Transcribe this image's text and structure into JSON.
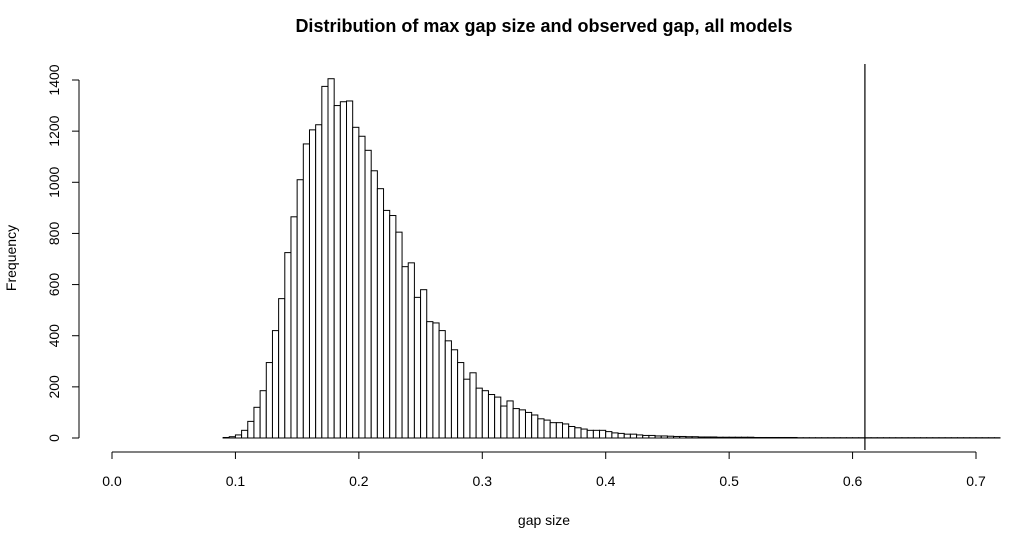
{
  "chart_data": {
    "type": "bar",
    "title": "Distribution of max gap size and observed gap, all models",
    "xlabel": "gap size",
    "ylabel": "Frequency",
    "xlim": [
      0.0,
      0.7
    ],
    "ylim": [
      0,
      1400
    ],
    "x_ticks": [
      0.0,
      0.1,
      0.2,
      0.3,
      0.4,
      0.5,
      0.6,
      0.7
    ],
    "x_tick_labels": [
      "0.0",
      "0.1",
      "0.2",
      "0.3",
      "0.4",
      "0.5",
      "0.6",
      "0.7"
    ],
    "y_ticks": [
      0,
      200,
      400,
      600,
      800,
      1000,
      1200,
      1400
    ],
    "y_tick_labels": [
      "0",
      "200",
      "400",
      "600",
      "800",
      "1000",
      "1200",
      "1400"
    ],
    "bin_start": 0.09,
    "bin_width": 0.005,
    "values": [
      2,
      5,
      12,
      30,
      65,
      120,
      185,
      295,
      420,
      545,
      725,
      865,
      1010,
      1150,
      1205,
      1225,
      1375,
      1405,
      1300,
      1315,
      1318,
      1215,
      1180,
      1125,
      1045,
      975,
      890,
      870,
      805,
      670,
      685,
      550,
      580,
      455,
      450,
      420,
      380,
      345,
      295,
      230,
      255,
      195,
      185,
      170,
      160,
      125,
      145,
      115,
      110,
      100,
      90,
      75,
      70,
      60,
      60,
      55,
      45,
      40,
      35,
      30,
      30,
      30,
      25,
      20,
      18,
      15,
      15,
      12,
      10,
      10,
      8,
      8,
      7,
      6,
      6,
      5,
      5,
      4,
      4,
      4,
      3,
      3,
      3,
      3,
      3,
      3,
      2,
      2,
      2,
      2,
      2,
      2,
      2,
      1,
      1,
      1,
      1,
      1,
      1,
      1,
      1,
      1,
      1,
      1,
      1,
      1,
      1,
      1,
      1,
      1,
      1,
      1,
      1,
      1,
      1,
      1,
      1,
      1,
      1,
      1,
      1,
      1,
      1,
      1,
      1,
      1,
      1,
      1,
      1,
      1,
      1,
      1,
      1,
      1,
      1,
      1,
      1,
      1,
      1,
      1,
      1,
      1,
      1,
      1,
      1,
      1,
      1,
      1,
      1,
      1,
      1,
      1,
      1,
      1,
      1,
      1,
      1,
      1,
      1,
      1,
      1,
      1,
      1,
      1,
      1,
      1,
      1,
      1,
      1,
      1,
      1,
      1,
      1,
      1,
      1,
      1,
      1,
      1,
      1,
      1,
      1,
      1,
      1,
      1,
      1,
      1,
      1,
      1,
      1,
      1,
      1,
      1,
      1,
      1,
      1,
      1,
      1,
      1,
      1,
      1,
      1,
      1,
      1,
      1,
      1,
      1,
      1,
      1,
      1,
      1,
      1,
      1,
      1,
      1,
      1,
      1,
      1,
      1,
      1,
      1,
      1,
      1,
      1,
      1,
      1,
      1,
      1,
      1,
      1,
      1,
      1,
      1,
      1,
      1,
      1,
      1,
      1,
      1,
      1,
      1,
      1,
      1,
      1,
      1,
      1,
      1,
      1,
      1,
      1,
      1,
      1,
      1,
      1,
      1,
      1,
      1,
      1,
      1,
      1,
      1,
      1,
      1
    ],
    "observed_gap": 0.61,
    "grid": false
  }
}
